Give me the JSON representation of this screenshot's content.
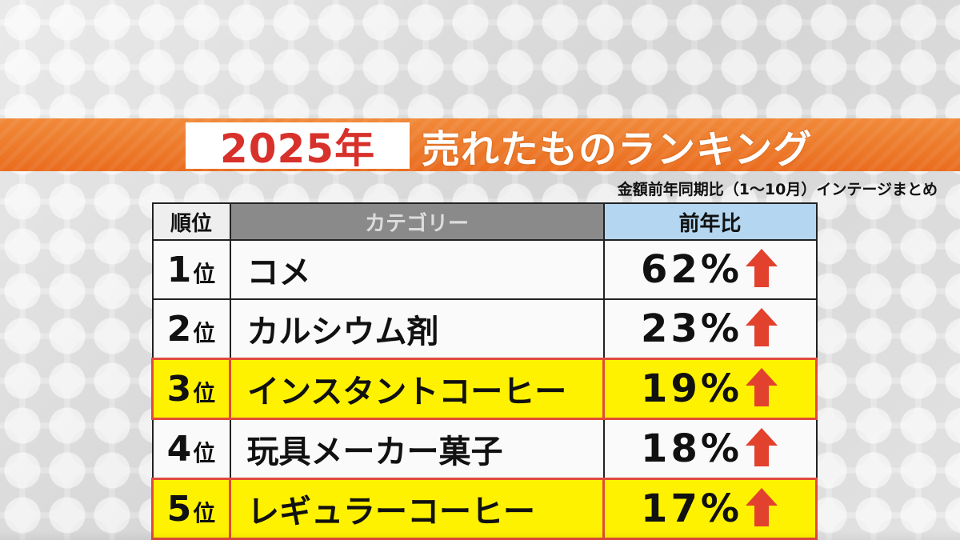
{
  "title": {
    "year": "2025年",
    "text": "売れたものランキング"
  },
  "subtitle": "金額前年同期比（1～10月）インテージまとめ",
  "colors": {
    "band": "#ea6d1f",
    "year_text": "#d8302a",
    "highlight": "#fff200",
    "highlight_border": "#e14a3a",
    "arrow": "#e2412e",
    "header_yoy": "#b4d6f0",
    "header_category": "#8a8a8a"
  },
  "table": {
    "headers": {
      "rank": "順位",
      "category": "カテゴリー",
      "yoy": "前年比"
    },
    "rows": [
      {
        "rank_num": "1",
        "rank_suffix": "位",
        "category": "コメ",
        "yoy": "62%",
        "trend": "up-arrow-icon",
        "highlight": false
      },
      {
        "rank_num": "2",
        "rank_suffix": "位",
        "category": "カルシウム剤",
        "yoy": "23%",
        "trend": "up-arrow-icon",
        "highlight": false
      },
      {
        "rank_num": "3",
        "rank_suffix": "位",
        "category": "インスタントコーヒー",
        "yoy": "19%",
        "trend": "up-arrow-icon",
        "highlight": true
      },
      {
        "rank_num": "4",
        "rank_suffix": "位",
        "category": "玩具メーカー菓子",
        "yoy": "18%",
        "trend": "up-arrow-icon",
        "highlight": false
      },
      {
        "rank_num": "5",
        "rank_suffix": "位",
        "category": "レギュラーコーヒー",
        "yoy": "17%",
        "trend": "up-arrow-icon",
        "highlight": true
      }
    ]
  }
}
